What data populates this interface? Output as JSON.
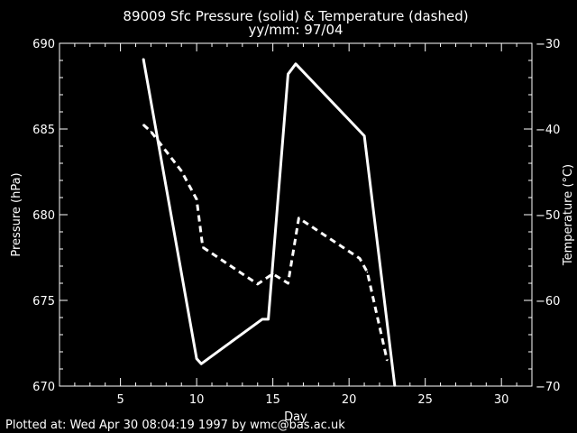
{
  "chart_data": {
    "type": "line",
    "title": "89009 Sfc Pressure (solid) & Temperature (dashed)",
    "subtitle": "yy/mm: 97/04",
    "xlabel": "Day",
    "ylabel": "Pressure (hPa)",
    "y2label": "Temperature (°C)",
    "xlim": [
      1,
      32
    ],
    "ylim": [
      670,
      690
    ],
    "y2lim": [
      -70,
      -30
    ],
    "xticks": [
      5,
      10,
      15,
      20,
      25,
      30
    ],
    "yticks": [
      670,
      675,
      680,
      685,
      690
    ],
    "y2ticks": [
      -70,
      -60,
      -50,
      -40,
      -30
    ],
    "grid": false,
    "colors": {
      "background": "#000000",
      "foreground": "#ffffff"
    },
    "series": [
      {
        "axis": "left",
        "style": "solid",
        "x": [
          6.5,
          10.0,
          10.3,
          14.3,
          14.7,
          16.0,
          16.5,
          21.0,
          23.0
        ],
        "values": [
          689.1,
          671.6,
          671.3,
          673.9,
          673.9,
          688.2,
          688.8,
          684.6,
          670.0
        ]
      },
      {
        "axis": "right",
        "style": "dashed",
        "x": [
          6.5,
          7.0,
          9.0,
          10.0,
          10.4,
          14.0,
          15.0,
          16.0,
          16.7,
          20.7,
          21.2,
          22.5
        ],
        "values": [
          -39.5,
          -40.3,
          -44.9,
          -48.2,
          -53.8,
          -58.1,
          -56.9,
          -58.0,
          -50.4,
          -55.1,
          -56.7,
          -67.0
        ]
      }
    ]
  },
  "footer": "Plotted at: Wed Apr 30 08:04:19 1997 by wmc@bas.ac.uk"
}
